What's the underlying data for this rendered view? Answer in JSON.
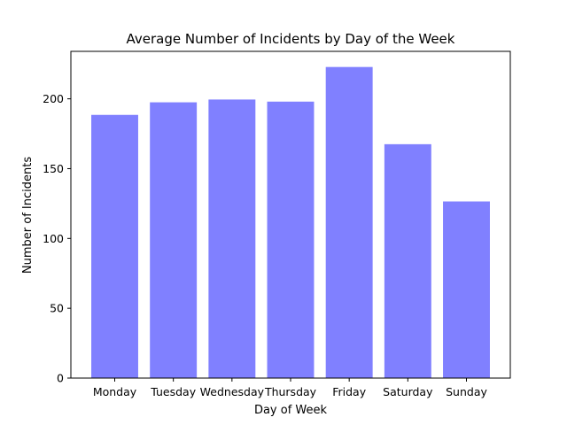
{
  "chart_data": {
    "type": "bar",
    "title": "Average Number of Incidents by Day of the Week",
    "xlabel": "Day of Week",
    "ylabel": "Number of Incidents",
    "categories": [
      "Monday",
      "Tuesday",
      "Wednesday",
      "Thursday",
      "Friday",
      "Saturday",
      "Sunday"
    ],
    "values": [
      188.5,
      197.5,
      199.5,
      198,
      222.8,
      167.5,
      126.5
    ],
    "ylim": [
      0,
      234
    ],
    "yticks": [
      0,
      50,
      100,
      150,
      200
    ],
    "bar_color": "#8080ff",
    "grid": false,
    "legend": "none"
  }
}
